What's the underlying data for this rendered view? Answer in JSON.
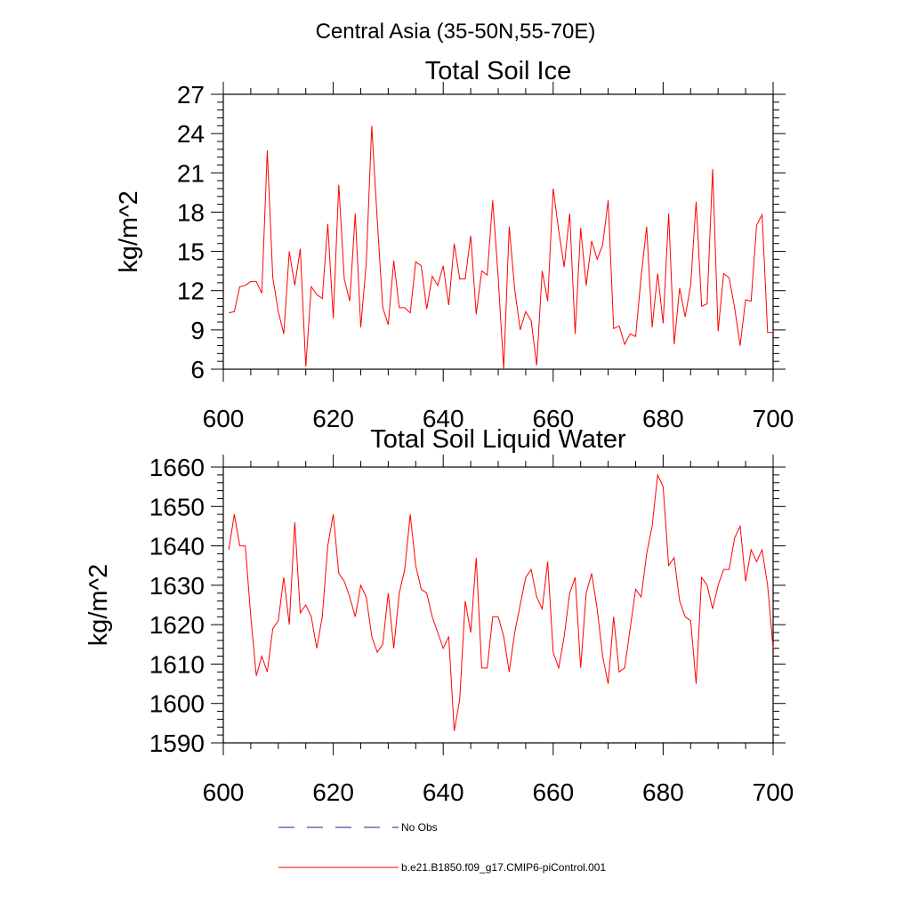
{
  "figure": {
    "title": "Central Asia (35-50N,55-70E)"
  },
  "colors": {
    "series": "#ff0000",
    "no_obs": "#1f1f8f",
    "axes": "#000000"
  },
  "chart_data": [
    {
      "type": "line",
      "title": "Total Soil Ice",
      "xlabel": "",
      "ylabel": "kg/m^2",
      "xlim": [
        600,
        700
      ],
      "ylim": [
        6,
        27
      ],
      "xticks": [
        600,
        620,
        640,
        660,
        680,
        700
      ],
      "yticks": [
        6,
        9,
        12,
        15,
        18,
        21,
        24,
        27
      ],
      "x_start": 601,
      "series": [
        {
          "name": "b.e21.B1850.f09_g17.CMIP6-piControl.001",
          "values": [
            10.3,
            10.4,
            12.3,
            12.4,
            12.7,
            12.7,
            11.8,
            22.7,
            13.0,
            10.4,
            8.7,
            15.0,
            12.4,
            15.2,
            6.2,
            12.3,
            11.7,
            11.4,
            17.1,
            9.9,
            20.1,
            12.9,
            11.2,
            17.9,
            9.2,
            14.1,
            24.6,
            17.4,
            10.7,
            9.4,
            14.3,
            10.7,
            10.7,
            10.3,
            14.2,
            13.9,
            10.6,
            13.1,
            12.4,
            13.9,
            10.9,
            15.6,
            12.9,
            12.9,
            16.2,
            10.2,
            13.5,
            13.2,
            18.9,
            13.0,
            6.0,
            16.9,
            12.1,
            9.0,
            10.4,
            9.7,
            6.3,
            13.5,
            11.2,
            19.8,
            16.6,
            13.8,
            17.9,
            8.7,
            16.8,
            12.4,
            15.8,
            14.4,
            15.5,
            18.9,
            9.1,
            9.3,
            7.9,
            8.7,
            8.5,
            13.1,
            16.9,
            9.2,
            13.3,
            9.5,
            17.9,
            7.9,
            12.2,
            10.0,
            12.4,
            18.8,
            10.8,
            11.0,
            21.3,
            8.9,
            13.3,
            13.0,
            10.7,
            7.8,
            11.3,
            11.2,
            17.0,
            17.8,
            8.8,
            8.8
          ]
        }
      ]
    },
    {
      "type": "line",
      "title": "Total Soil Liquid Water",
      "xlabel": "",
      "ylabel": "kg/m^2",
      "xlim": [
        600,
        700
      ],
      "ylim": [
        1590,
        1660
      ],
      "xticks": [
        600,
        620,
        640,
        660,
        680,
        700
      ],
      "yticks": [
        1590,
        1600,
        1610,
        1620,
        1630,
        1640,
        1650,
        1660
      ],
      "x_start": 601,
      "series": [
        {
          "name": "b.e21.B1850.f09_g17.CMIP6-piControl.001",
          "values": [
            1639,
            1648,
            1640,
            1640,
            1622,
            1607,
            1612,
            1608,
            1619,
            1621,
            1632,
            1620,
            1646,
            1623,
            1625,
            1622,
            1614,
            1622,
            1640,
            1648,
            1633,
            1631,
            1627,
            1622,
            1630,
            1627,
            1617,
            1613,
            1615,
            1628,
            1614,
            1628,
            1634,
            1648,
            1635,
            1629,
            1628,
            1622,
            1618,
            1614,
            1617,
            1593,
            1601,
            1626,
            1618,
            1637,
            1609,
            1609,
            1622,
            1622,
            1617,
            1608,
            1618,
            1625,
            1632,
            1634,
            1627,
            1624,
            1636,
            1613,
            1609,
            1617,
            1628,
            1632,
            1609,
            1628,
            1633,
            1624,
            1612,
            1605,
            1622,
            1608,
            1609,
            1619,
            1629,
            1627,
            1638,
            1645,
            1658,
            1655,
            1635,
            1637,
            1626,
            1622,
            1621,
            1605,
            1632,
            1630,
            1624,
            1630,
            1634,
            1634,
            1642,
            1645,
            1631,
            1639,
            1636,
            1639,
            1630,
            1614
          ]
        }
      ]
    }
  ],
  "legend": {
    "items": [
      {
        "label": "No Obs",
        "style": "dashed"
      },
      {
        "label": "b.e21.B1850.f09_g17.CMIP6-piControl.001",
        "style": "solid"
      }
    ]
  }
}
